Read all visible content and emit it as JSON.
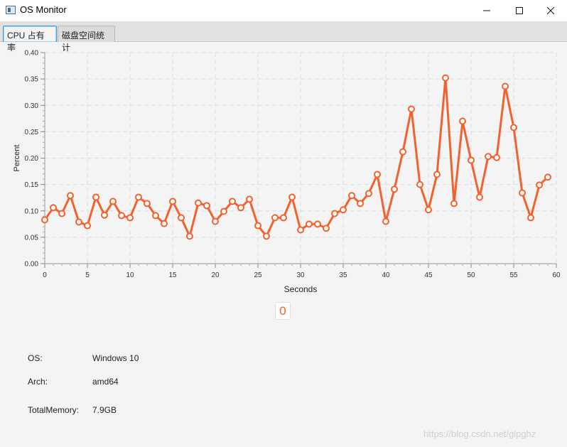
{
  "window": {
    "title": "OS Monitor"
  },
  "tabs": [
    {
      "label": "CPU 占有率",
      "active": true
    },
    {
      "label": "磁盘空间统计",
      "active": false
    }
  ],
  "chart_data": {
    "type": "line",
    "xlabel": "Seconds",
    "ylabel": "Percent",
    "xlim": [
      0,
      60
    ],
    "ylim": [
      0,
      0.4
    ],
    "grid": true,
    "x_ticks": [
      "0",
      "5",
      "10",
      "15",
      "20",
      "25",
      "30",
      "35",
      "40",
      "45",
      "50",
      "55",
      "60"
    ],
    "y_ticks": [
      "0.00",
      "0.05",
      "0.10",
      "0.15",
      "0.20",
      "0.25",
      "0.30",
      "0.35",
      "0.40"
    ],
    "series": [
      {
        "color": "#f3622d",
        "x": [
          0,
          1,
          2,
          3,
          4,
          5,
          6,
          7,
          8,
          9,
          10,
          11,
          12,
          13,
          14,
          15,
          16,
          17,
          18,
          19,
          20,
          21,
          22,
          23,
          24,
          25,
          26,
          27,
          28,
          29,
          30,
          31,
          32,
          33,
          34,
          35,
          36,
          37,
          38,
          39,
          40,
          41,
          42,
          43,
          44,
          45,
          46,
          47,
          48,
          49,
          50,
          51,
          52,
          53,
          54,
          55,
          56,
          57,
          58,
          59
        ],
        "y": [
          0.083,
          0.106,
          0.095,
          0.129,
          0.079,
          0.072,
          0.126,
          0.092,
          0.118,
          0.091,
          0.087,
          0.126,
          0.114,
          0.091,
          0.076,
          0.118,
          0.087,
          0.052,
          0.115,
          0.11,
          0.08,
          0.099,
          0.118,
          0.106,
          0.122,
          0.072,
          0.052,
          0.087,
          0.087,
          0.126,
          0.064,
          0.075,
          0.075,
          0.067,
          0.095,
          0.102,
          0.129,
          0.114,
          0.133,
          0.169,
          0.08,
          0.141,
          0.212,
          0.293,
          0.15,
          0.102,
          0.169,
          0.352,
          0.114,
          0.27,
          0.196,
          0.126,
          0.203,
          0.201,
          0.336,
          0.258,
          0.134,
          0.087,
          0.149,
          0.164
        ]
      }
    ]
  },
  "counter": {
    "value": "0"
  },
  "info": {
    "os_label": "OS:",
    "os_value": "Windows 10",
    "arch_label": "Arch:",
    "arch_value": "amd64",
    "mem_label": "TotalMemory:",
    "mem_value": "7.9GB"
  },
  "watermark": "https://blog.csdn.net/glpghz"
}
